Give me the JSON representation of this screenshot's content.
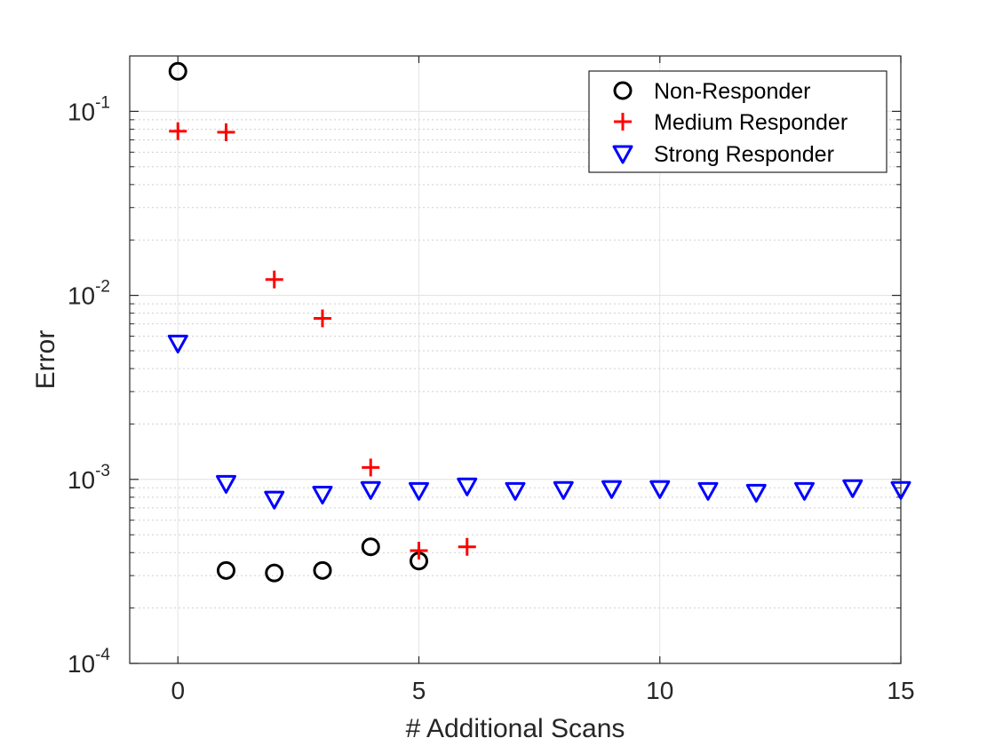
{
  "chart_data": {
    "type": "scatter",
    "title": "",
    "xlabel": "# Additional Scans",
    "ylabel": "Error",
    "xlim": [
      -1,
      15
    ],
    "ylim": [
      0.0001,
      0.2
    ],
    "yscale": "log",
    "grid": true,
    "xticks": [
      0,
      5,
      10,
      15
    ],
    "xtick_labels": [
      "0",
      "5",
      "10",
      "15"
    ],
    "yticks": [
      0.0001,
      0.001,
      0.01,
      0.1
    ],
    "ytick_labels": [
      {
        "base": "10",
        "exp": "-4"
      },
      {
        "base": "10",
        "exp": "-3"
      },
      {
        "base": "10",
        "exp": "-2"
      },
      {
        "base": "10",
        "exp": "-1"
      }
    ],
    "legend_position": "top-right",
    "series": [
      {
        "name": "Non-Responder",
        "marker": "circle",
        "color": "#000000",
        "points": [
          [
            0,
            0.165
          ],
          [
            1,
            0.00032
          ],
          [
            2,
            0.00031
          ],
          [
            3,
            0.00032
          ],
          [
            4,
            0.00043
          ],
          [
            5,
            0.00036
          ]
        ]
      },
      {
        "name": "Medium Responder",
        "marker": "plus",
        "color": "#ff0000",
        "points": [
          [
            0,
            0.078
          ],
          [
            1,
            0.077
          ],
          [
            2,
            0.0122
          ],
          [
            3,
            0.0075
          ],
          [
            4,
            0.00116
          ],
          [
            5,
            0.00041
          ],
          [
            6,
            0.00043
          ]
        ]
      },
      {
        "name": "Strong Responder",
        "marker": "triangle-down",
        "color": "#0000ff",
        "points": [
          [
            0,
            0.0055
          ],
          [
            1,
            0.00095
          ],
          [
            2,
            0.00078
          ],
          [
            3,
            0.00083
          ],
          [
            4,
            0.00088
          ],
          [
            5,
            0.00087
          ],
          [
            6,
            0.00092
          ],
          [
            7,
            0.00087
          ],
          [
            8,
            0.00088
          ],
          [
            9,
            0.00089
          ],
          [
            10,
            0.00089
          ],
          [
            11,
            0.00087
          ],
          [
            12,
            0.00085
          ],
          [
            13,
            0.00087
          ],
          [
            14,
            0.0009
          ],
          [
            15,
            0.00088
          ]
        ]
      }
    ]
  }
}
